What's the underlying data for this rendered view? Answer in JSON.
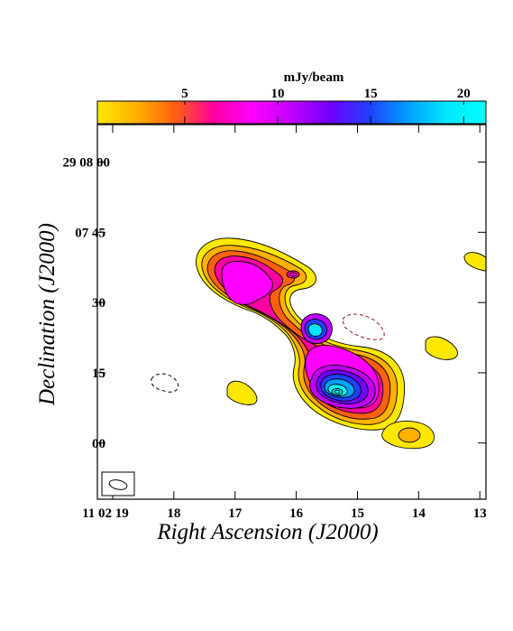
{
  "colorbar": {
    "unit_label": "mJy/beam",
    "ticks": [
      {
        "value": 5,
        "label": "5"
      },
      {
        "value": 10,
        "label": "10"
      },
      {
        "value": 15,
        "label": "15"
      },
      {
        "value": 20,
        "label": "20"
      }
    ],
    "range": [
      0.3,
      21.2
    ],
    "colors": [
      "#ffe800",
      "#ffb000",
      "#ff6010",
      "#ff00a0",
      "#ff00ff",
      "#c000ff",
      "#7000ff",
      "#2040ff",
      "#00a0ff",
      "#00e8ff",
      "#00ffff"
    ]
  },
  "axes": {
    "xlabel": "Right Ascension (J2000)",
    "ylabel": "Declination (J2000)",
    "x_ticks": [
      {
        "value": 19,
        "label": "11 02 19"
      },
      {
        "value": 18,
        "label": "18"
      },
      {
        "value": 17,
        "label": "17"
      },
      {
        "value": 16,
        "label": "16"
      },
      {
        "value": 15,
        "label": "15"
      },
      {
        "value": 14,
        "label": "14"
      },
      {
        "value": 13,
        "label": "13"
      }
    ],
    "y_ticks": [
      {
        "value": 60,
        "label": "29 08 00"
      },
      {
        "value": 45,
        "label": "07 45"
      },
      {
        "value": 30,
        "label": "30"
      },
      {
        "value": 15,
        "label": "15"
      },
      {
        "value": 0,
        "label": "00"
      }
    ],
    "x_unit": "seconds of RA (11h 02m)",
    "y_unit": "arcsec offset from 29°07'00\"",
    "x_range": [
      19.25,
      12.9
    ],
    "y_range": [
      -12,
      68
    ]
  },
  "colors": {
    "contour_line": "#000000",
    "negative_contour": "#8b1a1a",
    "axis": "#000000",
    "background": "#ffffff"
  },
  "beam": {
    "shape": "ellipse",
    "location": "bottom-left"
  }
}
